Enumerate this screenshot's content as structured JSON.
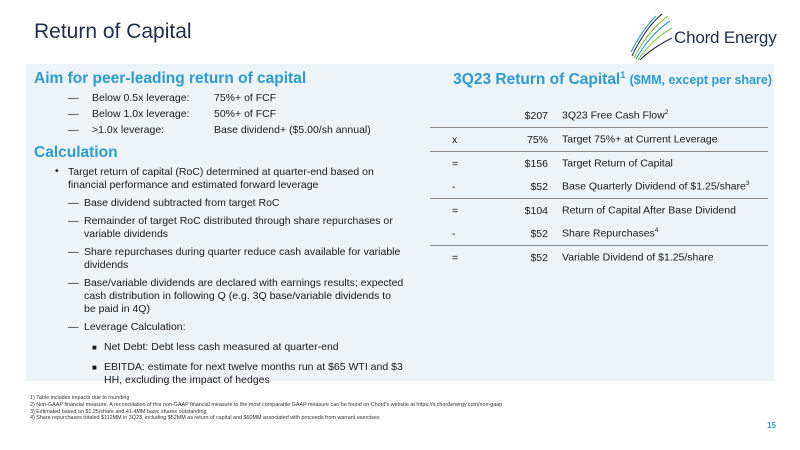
{
  "page": {
    "title": "Return of Capital",
    "logo_text": "Chord Energy",
    "page_number": "15"
  },
  "left": {
    "aim_heading": "Aim for peer-leading return of capital",
    "aim_rows": [
      {
        "dash": "—",
        "label": "Below 0.5x leverage:",
        "value": "75%+ of FCF"
      },
      {
        "dash": "—",
        "label": "Below 1.0x leverage:",
        "value": "50%+ of FCF"
      },
      {
        "dash": "—",
        "label": ">1.0x leverage:",
        "value": "Base dividend+ ($5.00/sh annual)"
      }
    ],
    "calc_heading": "Calculation",
    "main_bullet_marker": "•",
    "main_bullet": "Target return of capital (RoC) determined at quarter-end based on financial performance and estimated forward leverage",
    "sub_dash": "—",
    "sub_bullets": [
      "Base dividend subtracted from target RoC",
      "Remainder of target RoC distributed through share repurchases or variable dividends",
      "Share repurchases during quarter reduce cash available for variable dividends",
      "Base/variable dividends are declared with earnings results; expected cash distribution in following Q (e.g. 3Q base/variable dividends to be paid in 4Q)",
      "Leverage Calculation:"
    ],
    "subsub_marker": "■",
    "subsub_bullets": [
      "Net Debt:  Debt less cash measured at quarter-end",
      "EBITDA: estimate for next twelve months run at $65 WTI and $3 HH, excluding the impact of hedges"
    ]
  },
  "right": {
    "title_main": "3Q23 Return of Capital",
    "title_sup": "1",
    "title_unit": "($MM, except per share)",
    "rows": [
      {
        "op": "",
        "value": "$207",
        "label": "3Q23 Free Cash Flow",
        "sup": "2"
      },
      {
        "op": "x",
        "value": "75%",
        "label": "Target 75%+ at Current Leverage",
        "sup": ""
      },
      {
        "op": "=",
        "value": "$156",
        "label": "Target Return of Capital",
        "sup": ""
      },
      {
        "op": "-",
        "value": "$52",
        "label": "Base Quarterly Dividend of $1.25/share",
        "sup": "3"
      },
      {
        "op": "=",
        "value": "$104",
        "label": "Return of Capital After Base Dividend",
        "sup": ""
      },
      {
        "op": "-",
        "value": "$52",
        "label": "Share Repurchases",
        "sup": "4"
      },
      {
        "op": "=",
        "value": "$52",
        "label": "Variable Dividend of $1.25/share",
        "sup": ""
      }
    ]
  },
  "footnotes": [
    "1)   Table includes impacts due to rounding",
    "2)   Non-GAAP financial measure. A reconciliation of this non-GAAP financial measure to the most comparable GAAP measure can be found on Chord's website at https://ir.chordenergy.com/non-gaap",
    "3)   Estimated based on $1.25/share and 41.4MM basic shares outstanding",
    "4)   Share repurchases totaled $112MM in 3Q23, including $52MM as return of capital and $60MM associated with proceeds from warrant exercises"
  ],
  "colors": {
    "accent": "#2a9cd2",
    "navy": "#1f2f4a",
    "panel": "#eef3f8",
    "logo_green": "#8cc63f"
  },
  "icons": {
    "logo": "chord-energy-logo-icon"
  }
}
